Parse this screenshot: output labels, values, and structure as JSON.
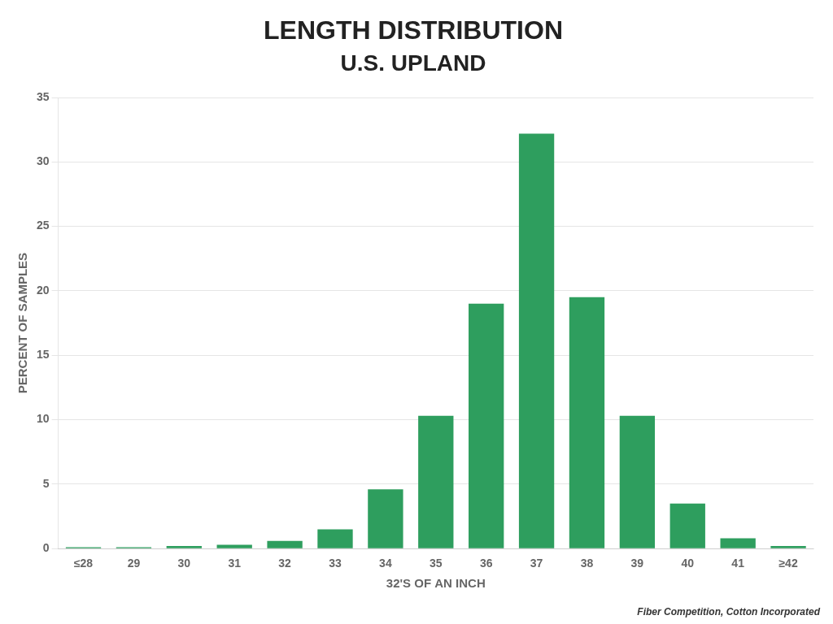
{
  "chart_data": {
    "type": "bar",
    "title": "LENGTH DISTRIBUTION",
    "subtitle": "U.S. UPLAND",
    "x_label": "32'S OF AN INCH",
    "y_label": "PERCENT OF SAMPLES",
    "annotations": [
      "Fiber Competition, Cotton Incorporated"
    ],
    "categories": [
      "≤28",
      "29",
      "30",
      "31",
      "32",
      "33",
      "34",
      "35",
      "36",
      "37",
      "38",
      "39",
      "40",
      "41",
      "≥42"
    ],
    "values": [
      0.1,
      0.1,
      0.2,
      0.3,
      0.6,
      1.5,
      4.6,
      10.3,
      19.0,
      32.2,
      19.5,
      10.3,
      3.5,
      0.8,
      0.2
    ],
    "color": "#2e9e5e",
    "ylim": [
      0,
      35
    ],
    "yticks": [
      0,
      5,
      10,
      15,
      20,
      25,
      30,
      35
    ],
    "grid": true
  }
}
